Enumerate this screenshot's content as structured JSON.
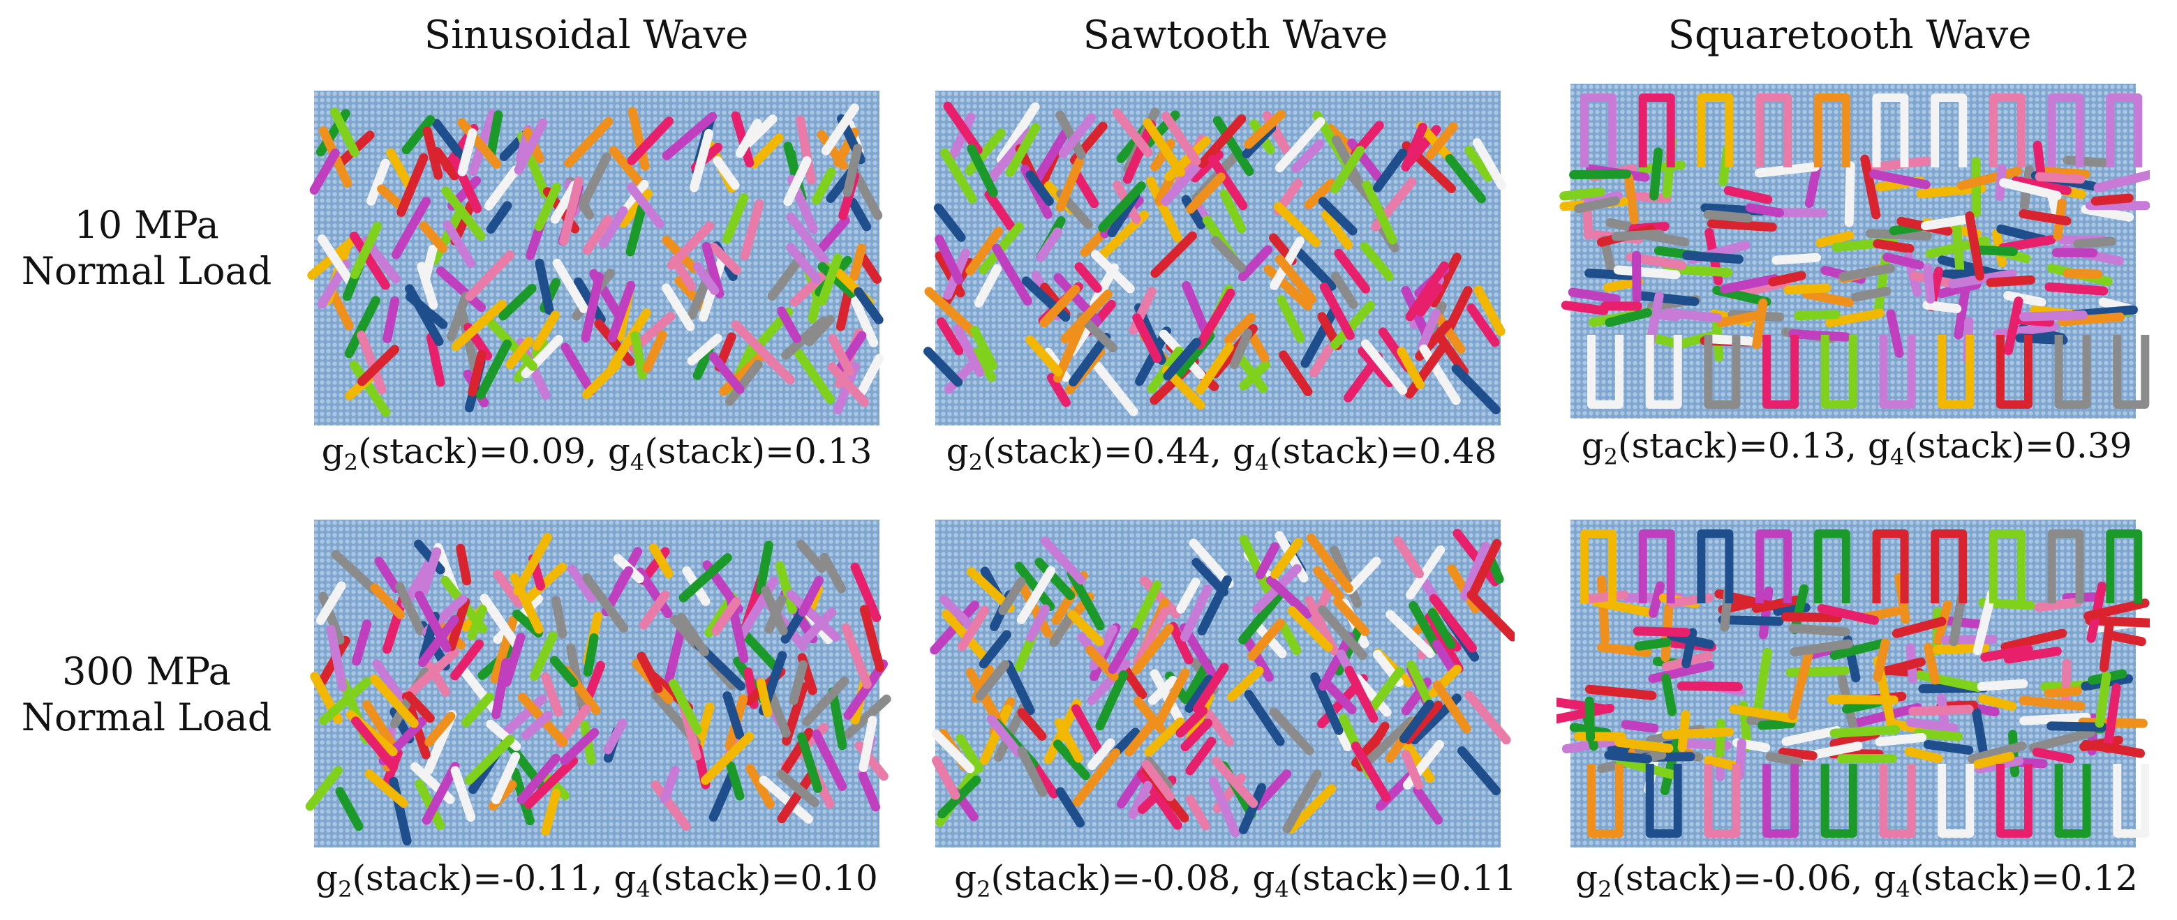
{
  "columns": [
    {
      "title": "Sinusoidal Wave",
      "shape": "sine"
    },
    {
      "title": "Sawtooth Wave",
      "shape": "saw"
    },
    {
      "title": "Squaretooth Wave",
      "shape": "square"
    }
  ],
  "rows": [
    {
      "label_line1": "10 MPa",
      "label_line2": "Normal Load"
    },
    {
      "label_line1": "300 MPa",
      "label_line2": "Normal Load"
    }
  ],
  "captions": [
    [
      {
        "g2": "0.09",
        "g4": "0.13"
      },
      {
        "g2": "0.44",
        "g4": "0.48"
      },
      {
        "g2": "0.13",
        "g4": "0.39"
      }
    ],
    [
      {
        "g2": "-0.11",
        "g4": "0.10"
      },
      {
        "g2": "-0.08",
        "g4": "0.11"
      },
      {
        "g2": "-0.06",
        "g4": "0.12"
      }
    ]
  ],
  "caption_parts": {
    "g": "g",
    "sub2": "2",
    "sub4": "4",
    "mid": "(stack)=",
    "sep": ", "
  },
  "colors": {
    "wall": "#7fa6cf",
    "wall_dot": "#a9c6e3",
    "chains": [
      "#d9232e",
      "#f0901c",
      "#1b9a2a",
      "#1f4e8c",
      "#c03fbf",
      "#8b8b8b",
      "#e87ba8",
      "#7fd11b",
      "#f3f3f3",
      "#e81f6a",
      "#c77ad6",
      "#f2b700"
    ]
  }
}
